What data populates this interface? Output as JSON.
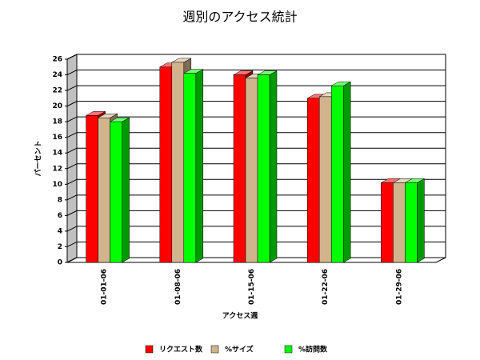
{
  "chart_data": {
    "type": "bar3d",
    "title": "週別のアクセス統計",
    "x_label": "アクセス週",
    "y_label": "パーセント",
    "categories": [
      "01-01-06",
      "01-08-06",
      "01-15-06",
      "01-22-06",
      "01-29-06"
    ],
    "series": [
      {
        "name": "リクエスト数",
        "color": "#ff0000",
        "values": [
          18.8,
          25,
          24,
          21,
          10.2
        ]
      },
      {
        "name": "%サイズ",
        "color": "#d2b48c",
        "values": [
          18.5,
          25.6,
          23.6,
          21.2,
          10.2
        ]
      },
      {
        "name": "%訪問数",
        "color": "#00ff00",
        "values": [
          18,
          24.2,
          24,
          22.6,
          10.2
        ]
      }
    ],
    "ylim": [
      0,
      26
    ],
    "yticks": [
      0,
      2,
      4,
      6,
      8,
      10,
      12,
      14,
      16,
      18,
      20,
      22,
      24,
      26
    ],
    "grid": true
  }
}
